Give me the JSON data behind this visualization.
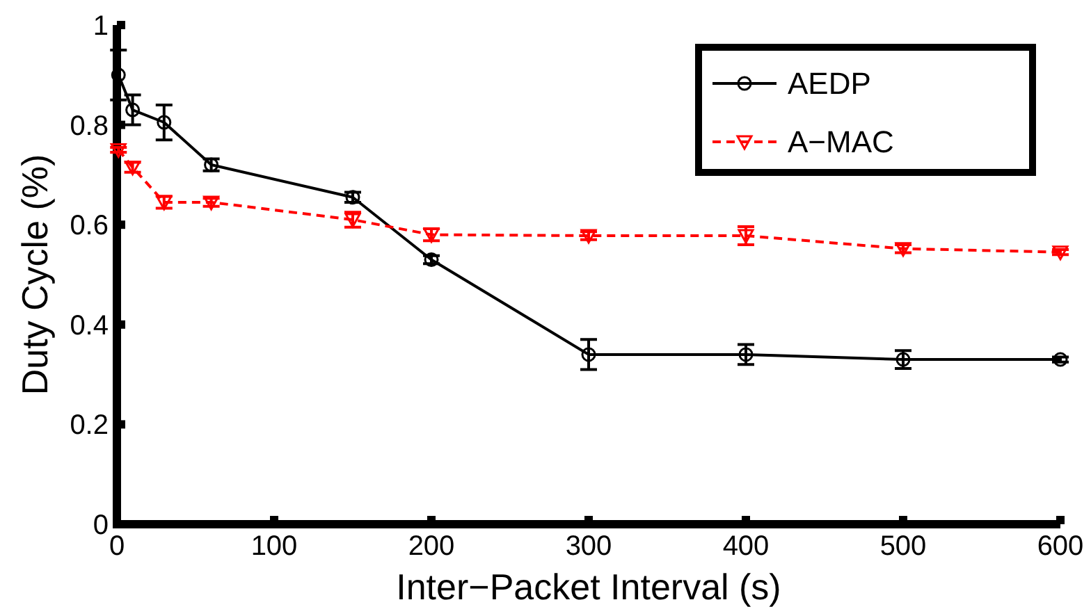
{
  "chart_data": {
    "type": "line",
    "xlabel": "Inter−Packet Interval (s)",
    "ylabel": "Duty Cycle (%)",
    "x": [
      1,
      10,
      30,
      60,
      150,
      200,
      300,
      400,
      500,
      600
    ],
    "xlim": [
      0,
      600
    ],
    "xticks": [
      0,
      100,
      200,
      300,
      400,
      500,
      600
    ],
    "ylim": [
      0,
      1
    ],
    "yticks": [
      0,
      0.2,
      0.4,
      0.6,
      0.8,
      1
    ],
    "legend": "top right",
    "grid": false,
    "series": [
      {
        "name": "AEDP",
        "color": "#000000",
        "marker": "circle",
        "line_style": "solid",
        "values": [
          0.9,
          0.83,
          0.805,
          0.72,
          0.655,
          0.53,
          0.34,
          0.34,
          0.33,
          0.33
        ],
        "errors": [
          0.05,
          0.03,
          0.035,
          0.012,
          0.01,
          0.008,
          0.03,
          0.02,
          0.018,
          0.005
        ]
      },
      {
        "name": "A−MAC",
        "color": "#ff0000",
        "marker": "triangle",
        "line_style": "dashed",
        "values": [
          0.75,
          0.715,
          0.645,
          0.645,
          0.61,
          0.58,
          0.578,
          0.578,
          0.552,
          0.545
        ],
        "errors": [
          0.005,
          0.01,
          0.012,
          0.008,
          0.015,
          0.012,
          0.008,
          0.018,
          0.008,
          0.005
        ]
      }
    ]
  }
}
